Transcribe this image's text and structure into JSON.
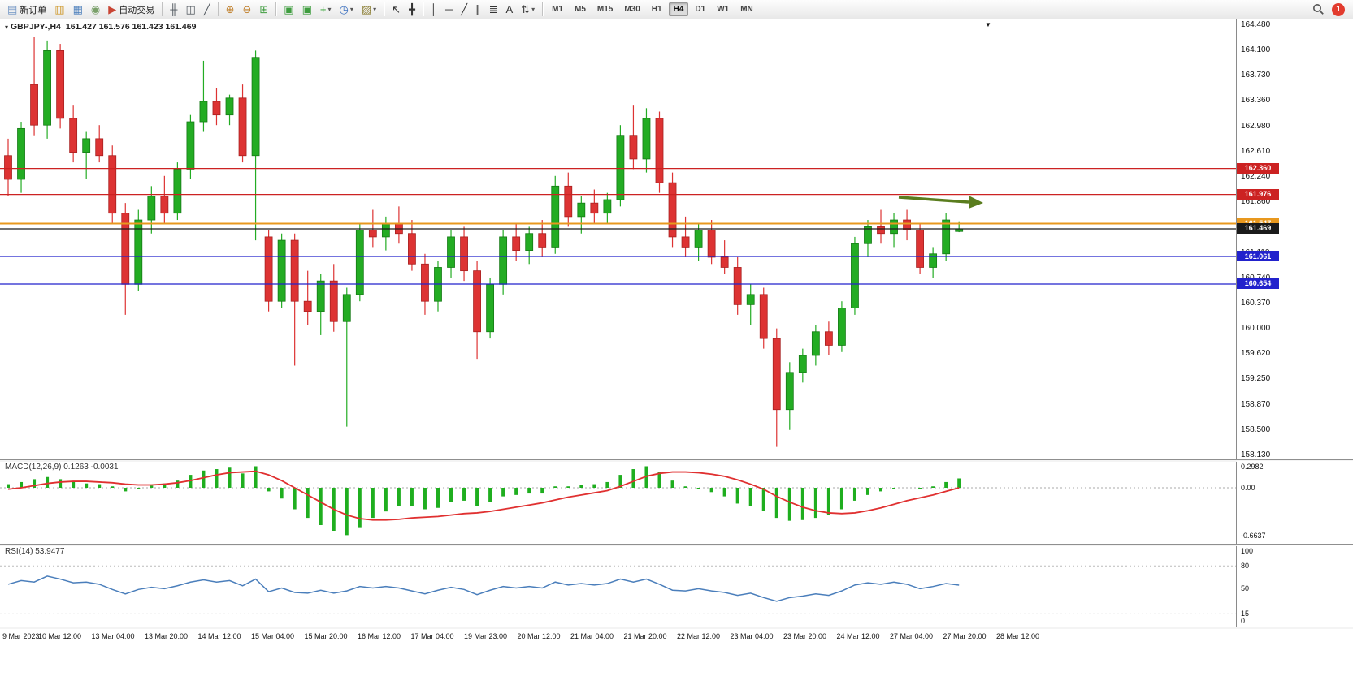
{
  "toolbar": {
    "groups": [
      [
        {
          "name": "new-order",
          "glyph": "▤",
          "color": "#6f94c4",
          "label": "新订单"
        },
        {
          "name": "chart-profile",
          "glyph": "▥",
          "color": "#d09a2e"
        },
        {
          "name": "market-watch",
          "glyph": "▦",
          "color": "#4a7ebb"
        },
        {
          "name": "navigator",
          "glyph": "◉",
          "color": "#7aa06a"
        },
        {
          "name": "auto-trading",
          "glyph": "▶",
          "color": "#c94433",
          "label": "自动交易"
        }
      ],
      [
        {
          "name": "bar-chart",
          "glyph": "╫",
          "color": "#50575e"
        },
        {
          "name": "candlestick-chart",
          "glyph": "◫",
          "color": "#50575e"
        },
        {
          "name": "line-chart",
          "glyph": "╱",
          "color": "#50575e"
        }
      ],
      [
        {
          "name": "zoom-in",
          "glyph": "⊕",
          "color": "#c07f2a"
        },
        {
          "name": "zoom-out",
          "glyph": "⊖",
          "color": "#c07f2a"
        },
        {
          "name": "tile-windows",
          "glyph": "⊞",
          "color": "#3f9d3f"
        }
      ],
      [
        {
          "name": "cascade-windows",
          "glyph": "▣",
          "color": "#3f9d3f"
        },
        {
          "name": "arrange-windows",
          "glyph": "▣",
          "color": "#3f9d3f"
        },
        {
          "name": "add-indicator",
          "glyph": "+",
          "color": "#2aa02a",
          "caret": true
        },
        {
          "name": "period-selector",
          "glyph": "◷",
          "color": "#3a6fbf",
          "caret": true
        },
        {
          "name": "template-selector",
          "glyph": "▨",
          "color": "#8f823a",
          "caret": true
        }
      ],
      [
        {
          "name": "cursor-tool",
          "glyph": "↖",
          "color": "#333333"
        },
        {
          "name": "crosshair-tool",
          "glyph": "╋",
          "color": "#333333"
        }
      ],
      [
        {
          "name": "vertical-line-tool",
          "glyph": "│",
          "color": "#333333"
        },
        {
          "name": "horizontal-line-tool",
          "glyph": "─",
          "color": "#333333"
        },
        {
          "name": "trendline-tool",
          "glyph": "╱",
          "color": "#333333"
        },
        {
          "name": "channel-tool",
          "glyph": "∥",
          "color": "#333333"
        },
        {
          "name": "fibonacci-tool",
          "glyph": "≣",
          "color": "#333333"
        },
        {
          "name": "text-tool",
          "glyph": "A",
          "color": "#333333"
        },
        {
          "name": "shapes-tool",
          "glyph": "⇅",
          "color": "#333333",
          "caret": true
        }
      ]
    ],
    "timeframes": [
      "M1",
      "M5",
      "M15",
      "M30",
      "H1",
      "H4",
      "D1",
      "W1",
      "MN"
    ],
    "active_timeframe": "H4",
    "notification_badge": "1"
  },
  "chart": {
    "collapse_icon": "▾",
    "title": "GBPJPY-,H4",
    "ohlc_text": "161.427 161.576 161.423 161.469",
    "shift_marker": "▼",
    "price_axis_labels": [
      164.48,
      164.1,
      163.73,
      163.36,
      162.98,
      162.61,
      162.24,
      161.86,
      161.49,
      161.11,
      160.74,
      160.37,
      160.0,
      159.62,
      159.25,
      158.87,
      158.5,
      158.13
    ],
    "levels": [
      {
        "price": 162.36,
        "label": "162.360",
        "color": "#cc2222",
        "type": "resistance-line",
        "thick": false
      },
      {
        "price": 161.976,
        "label": "161.976",
        "color": "#cc2222",
        "type": "resistance-line",
        "thick": false
      },
      {
        "price": 161.547,
        "label": "161.547",
        "color": "#e8981e",
        "type": "pivot-line",
        "thick": true
      },
      {
        "price": 161.469,
        "label": "161.469",
        "color": "#1a1a1a",
        "type": "current-price-line",
        "thick": false
      },
      {
        "price": 161.061,
        "label": "161.061",
        "color": "#2222cc",
        "type": "support-line",
        "thick": false
      },
      {
        "price": 160.654,
        "label": "160.654",
        "color": "#2222cc",
        "type": "support-line",
        "thick": false
      }
    ],
    "arrow_annotation": {
      "color": "#5a7d1e"
    },
    "time_labels": [
      "9 Mar 2023",
      "10 Mar 12:00",
      "13 Mar 04:00",
      "13 Mar 20:00",
      "14 Mar 12:00",
      "15 Mar 04:00",
      "15 Mar 20:00",
      "16 Mar 12:00",
      "17 Mar 04:00",
      "19 Mar 23:00",
      "20 Mar 12:00",
      "21 Mar 04:00",
      "21 Mar 20:00",
      "22 Mar 12:00",
      "23 Mar 04:00",
      "23 Mar 20:00",
      "24 Mar 12:00",
      "27 Mar 04:00",
      "27 Mar 20:00",
      "28 Mar 12:00"
    ]
  },
  "chart_data": {
    "type": "candlestick",
    "symbol": "GBPJPY-",
    "timeframe": "H4",
    "title": "GBPJPY-,H4 161.427 161.576 161.423 161.469",
    "price_range": [
      158.13,
      164.48
    ],
    "bull_color": "#23ac23",
    "bear_color": "#dd3333",
    "candles": [
      [
        162.55,
        162.8,
        161.95,
        162.2
      ],
      [
        162.2,
        163.05,
        162.0,
        162.95
      ],
      [
        163.6,
        164.3,
        162.85,
        163.0
      ],
      [
        163.0,
        164.25,
        162.8,
        164.1
      ],
      [
        164.1,
        164.2,
        162.95,
        163.1
      ],
      [
        163.1,
        163.3,
        162.45,
        162.6
      ],
      [
        162.6,
        162.9,
        162.2,
        162.8
      ],
      [
        162.8,
        163.0,
        162.45,
        162.55
      ],
      [
        162.55,
        162.7,
        161.55,
        161.7
      ],
      [
        161.7,
        161.85,
        160.2,
        160.65
      ],
      [
        160.65,
        161.75,
        160.55,
        161.6
      ],
      [
        161.6,
        162.1,
        161.4,
        161.95
      ],
      [
        161.95,
        162.25,
        161.55,
        161.7
      ],
      [
        161.7,
        162.45,
        161.6,
        162.35
      ],
      [
        162.35,
        163.15,
        162.2,
        163.05
      ],
      [
        163.05,
        163.95,
        162.9,
        163.35
      ],
      [
        163.35,
        163.55,
        163.0,
        163.15
      ],
      [
        163.15,
        163.45,
        163.0,
        163.4
      ],
      [
        163.4,
        163.6,
        162.45,
        162.55
      ],
      [
        162.55,
        164.1,
        161.3,
        164.0
      ],
      [
        161.35,
        161.45,
        160.25,
        160.4
      ],
      [
        160.4,
        161.4,
        160.3,
        161.3
      ],
      [
        161.3,
        161.4,
        159.45,
        160.4
      ],
      [
        160.4,
        160.85,
        160.05,
        160.25
      ],
      [
        160.25,
        160.8,
        159.9,
        160.7
      ],
      [
        160.7,
        160.95,
        159.95,
        160.1
      ],
      [
        160.1,
        160.6,
        158.55,
        160.5
      ],
      [
        160.5,
        161.55,
        160.4,
        161.45
      ],
      [
        161.45,
        161.75,
        161.2,
        161.35
      ],
      [
        161.35,
        161.65,
        161.15,
        161.55
      ],
      [
        161.55,
        161.8,
        161.25,
        161.4
      ],
      [
        161.4,
        161.6,
        160.85,
        160.95
      ],
      [
        160.95,
        161.1,
        160.2,
        160.4
      ],
      [
        160.4,
        161.0,
        160.25,
        160.9
      ],
      [
        160.9,
        161.45,
        160.75,
        161.35
      ],
      [
        161.35,
        161.5,
        160.7,
        160.85
      ],
      [
        160.85,
        161.0,
        159.55,
        159.95
      ],
      [
        159.95,
        160.75,
        159.85,
        160.65
      ],
      [
        160.65,
        161.45,
        160.5,
        161.35
      ],
      [
        161.35,
        161.55,
        161.0,
        161.15
      ],
      [
        161.15,
        161.5,
        160.95,
        161.4
      ],
      [
        161.4,
        161.6,
        161.05,
        161.2
      ],
      [
        161.2,
        162.25,
        161.1,
        162.1
      ],
      [
        162.1,
        162.3,
        161.5,
        161.65
      ],
      [
        161.65,
        161.95,
        161.4,
        161.85
      ],
      [
        161.85,
        162.05,
        161.55,
        161.7
      ],
      [
        161.7,
        162.0,
        161.55,
        161.9
      ],
      [
        161.9,
        163.0,
        161.8,
        162.85
      ],
      [
        162.85,
        163.3,
        162.35,
        162.5
      ],
      [
        162.5,
        163.25,
        162.3,
        163.1
      ],
      [
        163.1,
        163.2,
        162.0,
        162.15
      ],
      [
        162.15,
        162.3,
        161.2,
        161.35
      ],
      [
        161.35,
        161.65,
        161.05,
        161.2
      ],
      [
        161.2,
        161.55,
        161.0,
        161.45
      ],
      [
        161.45,
        161.6,
        160.95,
        161.05
      ],
      [
        161.05,
        161.3,
        160.8,
        160.9
      ],
      [
        160.9,
        161.05,
        160.2,
        160.35
      ],
      [
        160.35,
        160.65,
        160.05,
        160.5
      ],
      [
        160.5,
        160.6,
        159.7,
        159.85
      ],
      [
        159.85,
        160.0,
        158.25,
        158.8
      ],
      [
        158.8,
        159.5,
        158.5,
        159.35
      ],
      [
        159.35,
        159.7,
        159.2,
        159.6
      ],
      [
        159.6,
        160.05,
        159.45,
        159.95
      ],
      [
        159.95,
        160.1,
        159.6,
        159.75
      ],
      [
        159.75,
        160.4,
        159.65,
        160.3
      ],
      [
        160.3,
        161.35,
        160.2,
        161.25
      ],
      [
        161.25,
        161.6,
        161.05,
        161.5
      ],
      [
        161.5,
        161.75,
        161.25,
        161.4
      ],
      [
        161.4,
        161.7,
        161.2,
        161.6
      ],
      [
        161.6,
        161.75,
        161.3,
        161.45
      ],
      [
        161.45,
        161.55,
        160.8,
        160.9
      ],
      [
        160.9,
        161.2,
        160.75,
        161.1
      ],
      [
        161.1,
        161.7,
        161.0,
        161.6
      ],
      [
        161.43,
        161.58,
        161.42,
        161.47
      ]
    ],
    "macd": {
      "label": "MACD(12,26,9)",
      "values_text": "0.1263 -0.0031",
      "hist_color": "#1fae1f",
      "signal_color": "#e03030",
      "range": [
        -0.6637,
        0.2982
      ],
      "axis_labels": [
        "0.2982",
        "0.00",
        "-0.6637"
      ],
      "histogram": [
        0.05,
        0.08,
        0.12,
        0.15,
        0.12,
        0.08,
        0.06,
        0.05,
        0.02,
        -0.05,
        -0.02,
        0.03,
        0.06,
        0.1,
        0.18,
        0.24,
        0.26,
        0.28,
        0.2,
        0.3,
        -0.05,
        -0.15,
        -0.3,
        -0.42,
        -0.52,
        -0.6,
        -0.66,
        -0.55,
        -0.42,
        -0.33,
        -0.26,
        -0.25,
        -0.3,
        -0.28,
        -0.2,
        -0.18,
        -0.25,
        -0.2,
        -0.12,
        -0.1,
        -0.08,
        -0.08,
        0.02,
        0.02,
        0.04,
        0.05,
        0.08,
        0.18,
        0.26,
        0.3,
        0.22,
        0.1,
        0.02,
        -0.02,
        -0.06,
        -0.12,
        -0.22,
        -0.26,
        -0.32,
        -0.42,
        -0.46,
        -0.45,
        -0.42,
        -0.38,
        -0.3,
        -0.18,
        -0.1,
        -0.05,
        -0.02,
        0.0,
        -0.02,
        0.02,
        0.08,
        0.13
      ],
      "signal": [
        -0.02,
        0.0,
        0.03,
        0.06,
        0.08,
        0.09,
        0.09,
        0.08,
        0.07,
        0.05,
        0.04,
        0.04,
        0.05,
        0.07,
        0.1,
        0.14,
        0.18,
        0.21,
        0.22,
        0.23,
        0.18,
        0.1,
        0.0,
        -0.1,
        -0.2,
        -0.3,
        -0.38,
        -0.43,
        -0.45,
        -0.45,
        -0.44,
        -0.42,
        -0.41,
        -0.4,
        -0.38,
        -0.36,
        -0.35,
        -0.33,
        -0.3,
        -0.27,
        -0.24,
        -0.21,
        -0.17,
        -0.13,
        -0.1,
        -0.07,
        -0.04,
        0.02,
        0.09,
        0.16,
        0.2,
        0.22,
        0.22,
        0.21,
        0.19,
        0.16,
        0.11,
        0.05,
        -0.02,
        -0.12,
        -0.2,
        -0.27,
        -0.32,
        -0.35,
        -0.36,
        -0.35,
        -0.32,
        -0.28,
        -0.23,
        -0.18,
        -0.14,
        -0.1,
        -0.05,
        0.0
      ]
    },
    "rsi": {
      "label": "RSI(14)",
      "value_text": "53.9477",
      "line_color": "#4a7ebb",
      "levels": [
        80,
        50,
        15
      ],
      "axis_labels": [
        "100",
        "80",
        "50",
        "15",
        "0"
      ],
      "values": [
        55,
        60,
        58,
        66,
        62,
        57,
        58,
        55,
        48,
        42,
        48,
        51,
        49,
        53,
        58,
        61,
        58,
        60,
        53,
        62,
        45,
        50,
        44,
        43,
        47,
        43,
        46,
        52,
        50,
        52,
        50,
        46,
        42,
        47,
        51,
        48,
        41,
        47,
        52,
        50,
        52,
        50,
        58,
        54,
        56,
        54,
        56,
        62,
        58,
        62,
        55,
        47,
        46,
        49,
        46,
        44,
        40,
        43,
        37,
        32,
        37,
        39,
        42,
        40,
        46,
        54,
        57,
        55,
        58,
        55,
        49,
        52,
        56,
        53.9
      ]
    }
  }
}
